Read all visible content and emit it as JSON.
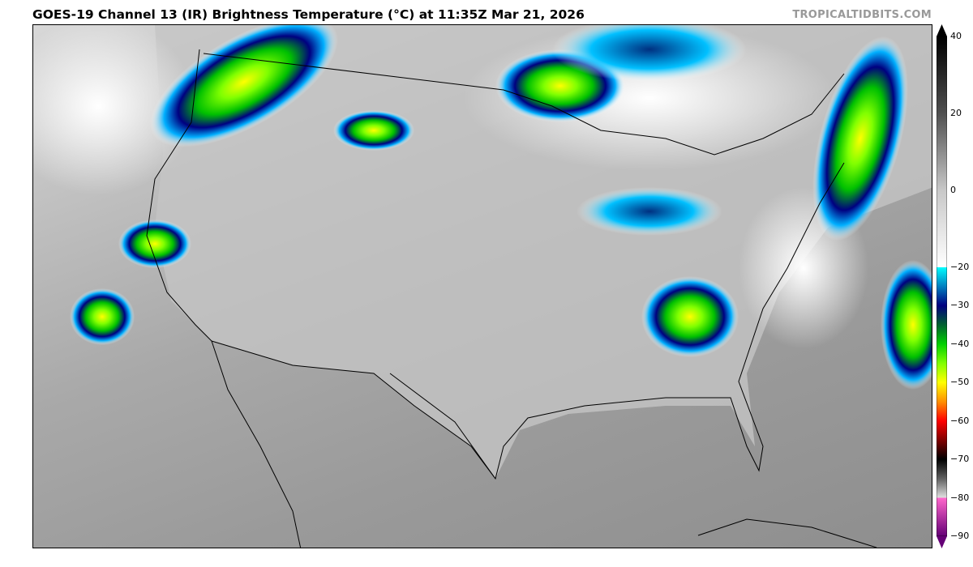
{
  "header": {
    "title": "GOES-19 Channel 13 (IR) Brightness Temperature (°C) at 11:35Z Mar 21, 2026",
    "brand": "TROPICALTIDBITS.COM"
  },
  "map": {
    "region": "Continental United States",
    "product": "infrared satellite imagery",
    "background_color": "#a8a8a8"
  },
  "colorbar": {
    "min": -90,
    "max": 40,
    "extend": "both",
    "ticks": [
      "40",
      "20",
      "0",
      "−20",
      "−30",
      "−40",
      "−50",
      "−60",
      "−70",
      "−80",
      "−90"
    ],
    "tick_values": [
      40,
      20,
      0,
      -20,
      -30,
      -40,
      -50,
      -60,
      -70,
      -80,
      -90
    ],
    "stops": [
      {
        "t": 40,
        "color": "#000000"
      },
      {
        "t": 20,
        "color": "#505050"
      },
      {
        "t": 0,
        "color": "#c8c8c8"
      },
      {
        "t": -20,
        "color": "#ffffff"
      },
      {
        "t": -20.01,
        "color": "#00ffff"
      },
      {
        "t": -25,
        "color": "#0080c0"
      },
      {
        "t": -30,
        "color": "#000080"
      },
      {
        "t": -35,
        "color": "#006030"
      },
      {
        "t": -40,
        "color": "#00d000"
      },
      {
        "t": -45,
        "color": "#80ff00"
      },
      {
        "t": -50,
        "color": "#ffff00"
      },
      {
        "t": -55,
        "color": "#ff9000"
      },
      {
        "t": -60,
        "color": "#ff0000"
      },
      {
        "t": -65,
        "color": "#800000"
      },
      {
        "t": -70,
        "color": "#000000"
      },
      {
        "t": -75,
        "color": "#606060"
      },
      {
        "t": -80,
        "color": "#e0e0e0"
      },
      {
        "t": -80.01,
        "color": "#ff66cc"
      },
      {
        "t": -90,
        "color": "#660077"
      }
    ]
  }
}
